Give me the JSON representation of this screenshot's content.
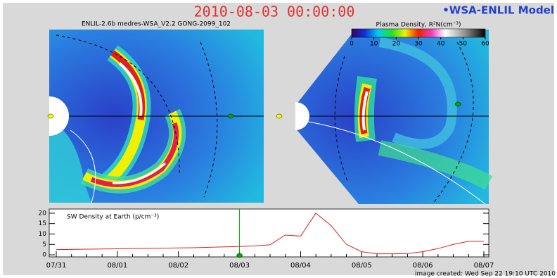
{
  "title": "2010-08-03 00:00:00",
  "model_label": "•WSA-ENLIL Model",
  "run_label": "ENLIL-2.6b medres-WSA_V2.2 GONG-2099_102",
  "colorbar": {
    "label": "Plasma Density, R²N(cm⁻³)",
    "ticks": [
      0,
      10,
      20,
      30,
      40,
      50,
      60
    ]
  },
  "chart_data": {
    "type": "line",
    "title": "SW Density at Earth (p/cm⁻³)",
    "categories": [
      "07/31",
      null,
      null,
      null,
      "08/01",
      null,
      null,
      null,
      "08/02",
      null,
      null,
      null,
      "08/03",
      null,
      null,
      null,
      "08/04",
      null,
      null,
      null,
      "08/05",
      null,
      null,
      null,
      "08/06",
      null,
      null,
      null,
      "08/07"
    ],
    "values": [
      2.5,
      2.6,
      2.7,
      2.8,
      2.9,
      3,
      3.1,
      3.2,
      3.3,
      3.4,
      3.6,
      3.8,
      4,
      4.3,
      4.8,
      9.5,
      9,
      20,
      14,
      5,
      1.5,
      0.5,
      0.5,
      0.6,
      1.5,
      3,
      5,
      6.5,
      6.5
    ],
    "color": "#e02020",
    "ylim": [
      -1,
      22
    ],
    "yticks": [
      0,
      5,
      10,
      15,
      20
    ]
  },
  "footer": "image created: Wed Sep 22 19:10 UTC 2010"
}
